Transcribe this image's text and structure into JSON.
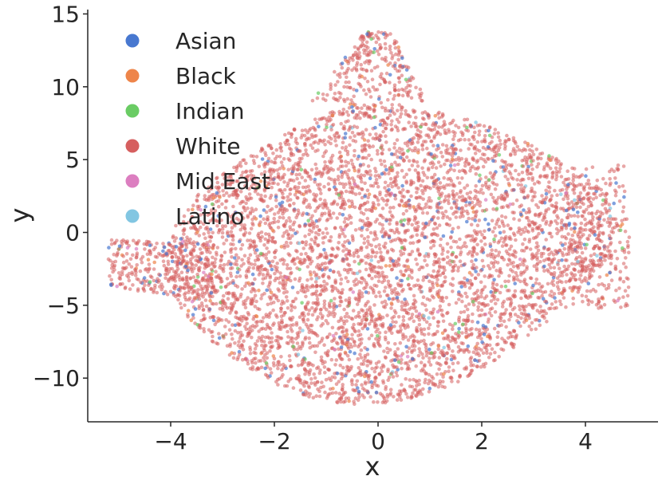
{
  "chart_data": {
    "type": "scatter",
    "xlabel": "x",
    "ylabel": "y",
    "xlim": [
      -5.6,
      5.4
    ],
    "ylim": [
      -13.0,
      15.3
    ],
    "x_ticks": [
      -4,
      -2,
      0,
      2,
      4
    ],
    "y_ticks": [
      -10,
      -5,
      0,
      5,
      10,
      15
    ],
    "x_tick_labels": [
      "−4",
      "−2",
      "0",
      "2",
      "4"
    ],
    "y_tick_labels": [
      "−10",
      "−5",
      "0",
      "5",
      "10",
      "15"
    ],
    "grid": false,
    "legend_position": "top-left",
    "point_count_note": "approximately 6000 points, mostly White",
    "series": [
      {
        "name": "Asian",
        "color": "#4878d0",
        "approx_share": 0.035
      },
      {
        "name": "Black",
        "color": "#ee854a",
        "approx_share": 0.015
      },
      {
        "name": "Indian",
        "color": "#6acc64",
        "approx_share": 0.01
      },
      {
        "name": "White",
        "color": "#d65f5f",
        "approx_share": 0.93
      },
      {
        "name": "Mid East",
        "color": "#dc7ec0",
        "approx_share": 0.004
      },
      {
        "name": "Latino",
        "color": "#82c6e2",
        "approx_share": 0.006
      }
    ],
    "cluster_regions": [
      {
        "label": "main body",
        "x_range": [
          -4.2,
          4.8
        ],
        "y_range": [
          -11.8,
          9.0
        ]
      },
      {
        "label": "top spike",
        "x_range": [
          -0.8,
          0.7
        ],
        "y_range": [
          9.0,
          13.8
        ]
      },
      {
        "label": "left arm",
        "x_range": [
          -5.2,
          -3.0
        ],
        "y_range": [
          -4.5,
          0.0
        ]
      },
      {
        "label": "right arm",
        "x_range": [
          3.5,
          4.9
        ],
        "y_range": [
          -5.5,
          4.5
        ]
      }
    ]
  }
}
